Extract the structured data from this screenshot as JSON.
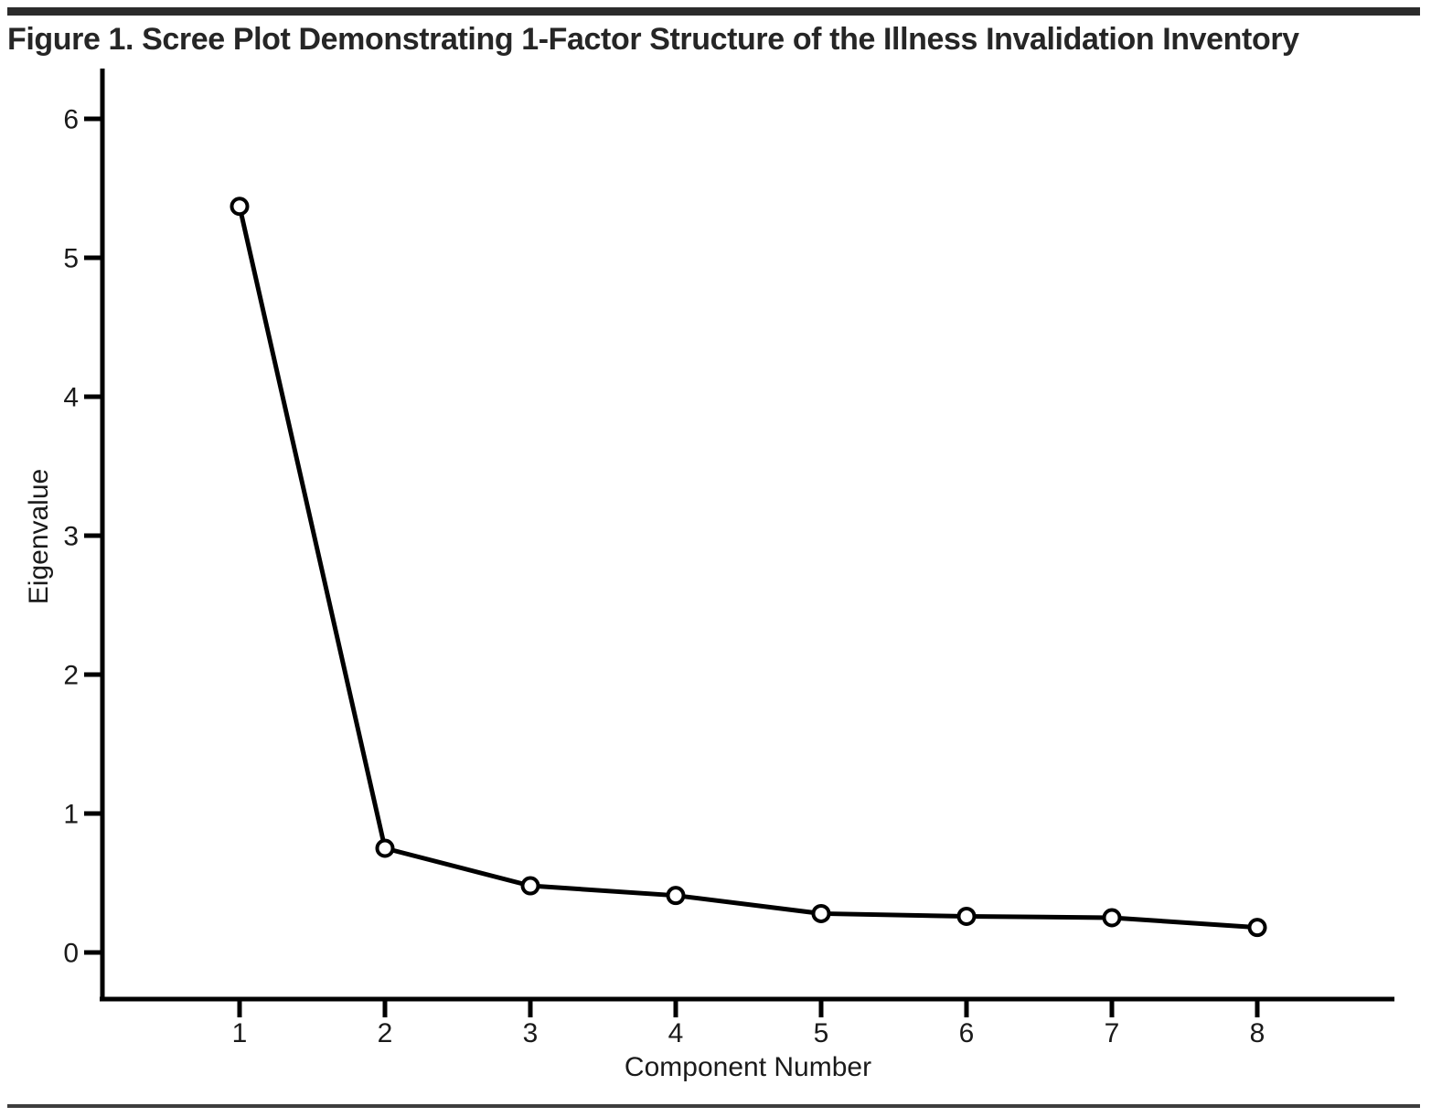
{
  "figure": {
    "title": "Figure 1. Scree Plot Demonstrating 1-Factor Structure of the Illness Invalidation Inventory"
  },
  "chart_data": {
    "type": "line",
    "title": "",
    "xlabel": "Component Number",
    "ylabel": "Eigenvalue",
    "x": [
      1,
      2,
      3,
      4,
      5,
      6,
      7,
      8
    ],
    "values": [
      5.37,
      0.75,
      0.48,
      0.41,
      0.28,
      0.26,
      0.25,
      0.18
    ],
    "x_tick_labels": [
      "1",
      "2",
      "3",
      "4",
      "5",
      "6",
      "7",
      "8"
    ],
    "y_tick_labels": [
      "0",
      "1",
      "2",
      "3",
      "4",
      "5",
      "6"
    ],
    "y_ticks": [
      0,
      1,
      2,
      3,
      4,
      5,
      6
    ],
    "ylim": [
      0,
      6
    ],
    "marker": "open-circle",
    "grid": false,
    "legend": "none"
  },
  "colors": {
    "top_bar": "#2b2b2b",
    "footer_rule": "#3d3d3d",
    "title_text": "#262626",
    "axis_text": "#1a1a1a",
    "line": "#000000",
    "marker_fill": "#ffffff"
  }
}
